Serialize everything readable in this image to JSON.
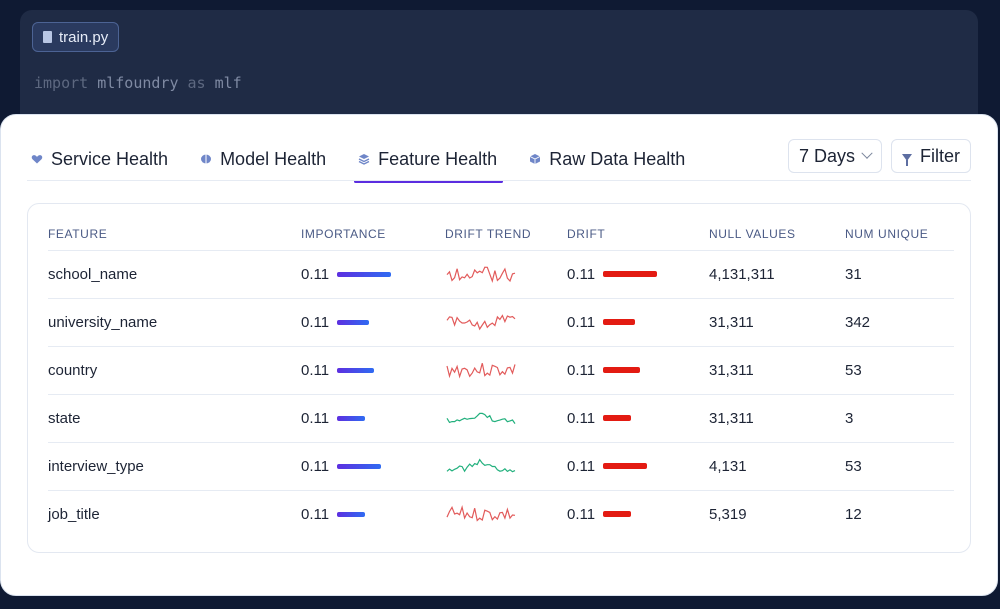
{
  "editor": {
    "file_name": "train.py",
    "code": {
      "kw1": "import",
      "module": "mlfoundry",
      "kw2": "as",
      "alias": "mlf"
    }
  },
  "tabs": [
    {
      "label": "Service Health",
      "icon": "heart-icon",
      "active": false
    },
    {
      "label": "Model Health",
      "icon": "brain-icon",
      "active": false
    },
    {
      "label": "Feature Health",
      "icon": "layers-icon",
      "active": true
    },
    {
      "label": "Raw Data Health",
      "icon": "cube-icon",
      "active": false
    }
  ],
  "controls": {
    "range_value": "7 Days",
    "filter_label": "Filter"
  },
  "colors": {
    "accent": "#5b2de0",
    "drift_red": "#e31b12",
    "trend_red": "#e25b5b",
    "trend_green": "#22b07d"
  },
  "table": {
    "columns": [
      "FEATURE",
      "IMPORTANCE",
      "DRIFT TREND",
      "DRIFT",
      "NULL VALUES",
      "NUM UNIQUE"
    ],
    "rows": [
      {
        "feature": "school_name",
        "importance": "0.11",
        "importance_level": 1.0,
        "trend": "red",
        "drift": "0.11",
        "drift_level": 1.0,
        "null_values": "4,131,311",
        "num_unique": "31"
      },
      {
        "feature": "university_name",
        "importance": "0.11",
        "importance_level": 0.6,
        "trend": "red",
        "drift": "0.11",
        "drift_level": 0.6,
        "null_values": "31,311",
        "num_unique": "342"
      },
      {
        "feature": "country",
        "importance": "0.11",
        "importance_level": 0.68,
        "trend": "red",
        "drift": "0.11",
        "drift_level": 0.68,
        "null_values": "31,311",
        "num_unique": "53"
      },
      {
        "feature": "state",
        "importance": "0.11",
        "importance_level": 0.52,
        "trend": "green",
        "drift": "0.11",
        "drift_level": 0.52,
        "null_values": "31,311",
        "num_unique": "3"
      },
      {
        "feature": "interview_type",
        "importance": "0.11",
        "importance_level": 0.82,
        "trend": "green",
        "drift": "0.11",
        "drift_level": 0.82,
        "null_values": "4,131",
        "num_unique": "53"
      },
      {
        "feature": "job_title",
        "importance": "0.11",
        "importance_level": 0.52,
        "trend": "red",
        "drift": "0.11",
        "drift_level": 0.52,
        "null_values": "5,319",
        "num_unique": "12"
      }
    ]
  }
}
